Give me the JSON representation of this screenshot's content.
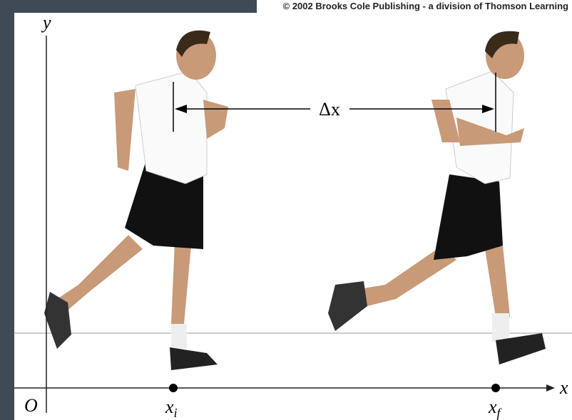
{
  "copyright": "© 2002 Brooks Cole Publishing - a division of Thomson Learning",
  "axes": {
    "y": "y",
    "x": "x",
    "origin": "O"
  },
  "displacement": "Δx",
  "points": [
    {
      "symbol": "x",
      "subscript": "i"
    },
    {
      "symbol": "x",
      "subscript": "f"
    }
  ]
}
